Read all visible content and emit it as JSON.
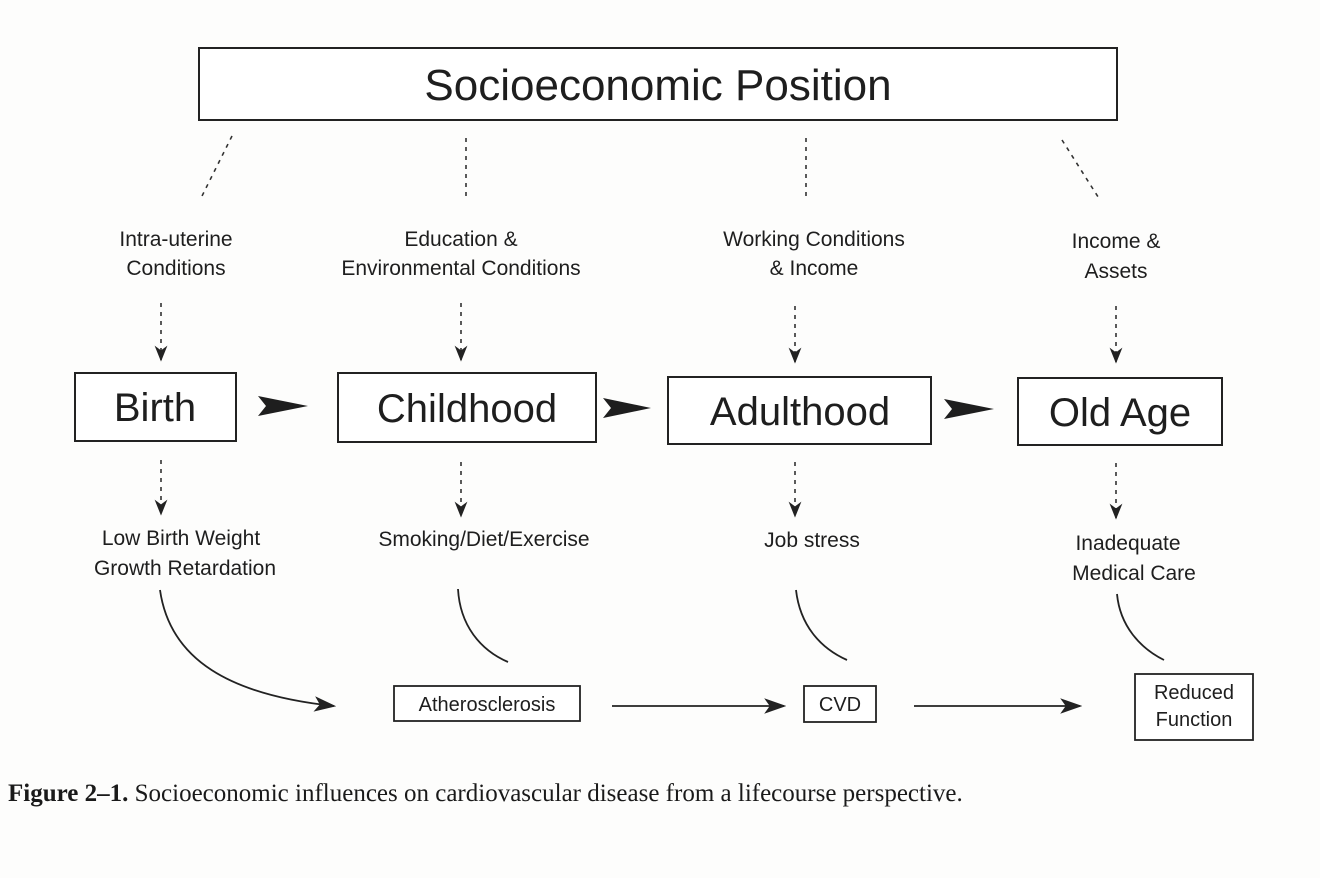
{
  "title": "Socioeconomic Position",
  "stages": [
    {
      "label": "Birth"
    },
    {
      "label": "Childhood"
    },
    {
      "label": "Adulthood"
    },
    {
      "label": "Old Age"
    }
  ],
  "influences": [
    {
      "line1": "Intra-uterine",
      "line2": "Conditions"
    },
    {
      "line1": "Education &",
      "line2": "Environmental Conditions"
    },
    {
      "line1": "Working Conditions",
      "line2": "& Income"
    },
    {
      "line1": "Income &",
      "line2": "Assets"
    }
  ],
  "exposures": [
    {
      "line1": "Low Birth Weight",
      "line2": "Growth Retardation"
    },
    {
      "line1": "Smoking/Diet/Exercise",
      "line2": ""
    },
    {
      "line1": "Job stress",
      "line2": ""
    },
    {
      "line1": "Inadequate",
      "line2": "Medical Care"
    }
  ],
  "outcomes": [
    {
      "line1": "Atherosclerosis",
      "line2": ""
    },
    {
      "line1": "CVD",
      "line2": ""
    },
    {
      "line1": "Reduced",
      "line2": "Function"
    }
  ],
  "caption": {
    "label": "Figure 2–1.",
    "text": "Socioeconomic influences on cardiovascular disease from a lifecourse perspective."
  }
}
